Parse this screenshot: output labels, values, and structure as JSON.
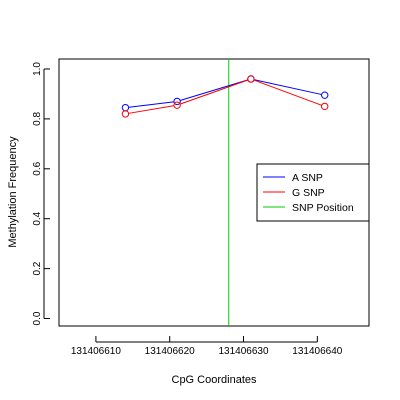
{
  "chart_data": {
    "type": "line",
    "title": "",
    "xlabel": "CpG Coordinates",
    "ylabel": "Methylation Frequency",
    "xlim": [
      131406605,
      131406647
    ],
    "ylim": [
      -0.03,
      1.04
    ],
    "x_ticks": [
      131406610,
      131406620,
      131406630,
      131406640
    ],
    "x_tick_labels": [
      "131406610",
      "131406620",
      "131406630",
      "131406640"
    ],
    "y_ticks": [
      0.0,
      0.2,
      0.4,
      0.6,
      0.8,
      1.0
    ],
    "y_tick_labels": [
      "0.0",
      "0.2",
      "0.4",
      "0.6",
      "0.8",
      "1.0"
    ],
    "grid": false,
    "legend_position": "right",
    "series": [
      {
        "name": "A SNP",
        "color": "#0000ff",
        "x": [
          131406614,
          131406621,
          131406631,
          131406641
        ],
        "y": [
          0.845,
          0.87,
          0.96,
          0.895
        ]
      },
      {
        "name": "G SNP",
        "color": "#ff0000",
        "x": [
          131406614,
          131406621,
          131406631,
          131406641
        ],
        "y": [
          0.82,
          0.855,
          0.96,
          0.85
        ]
      }
    ],
    "vline": {
      "name": "SNP Position",
      "color": "#00cc00",
      "x": 131406628
    }
  }
}
